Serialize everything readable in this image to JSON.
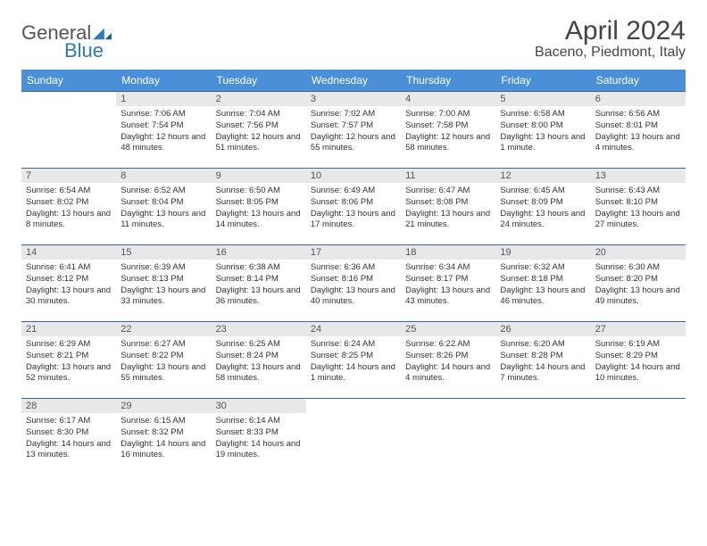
{
  "logo": {
    "general": "General",
    "blue": "Blue"
  },
  "title": "April 2024",
  "location": "Baceno, Piedmont, Italy",
  "colors": {
    "header_bg": "#4a90d9",
    "header_fg": "#ffffff",
    "row_border": "#3a6a9c",
    "daynum_bg": "#e8e8e8",
    "logo_blue": "#2a7ab8"
  },
  "weekdays": [
    "Sunday",
    "Monday",
    "Tuesday",
    "Wednesday",
    "Thursday",
    "Friday",
    "Saturday"
  ],
  "weeks": [
    [
      null,
      {
        "n": "1",
        "sr": "Sunrise: 7:06 AM",
        "ss": "Sunset: 7:54 PM",
        "dl": "Daylight: 12 hours and 48 minutes."
      },
      {
        "n": "2",
        "sr": "Sunrise: 7:04 AM",
        "ss": "Sunset: 7:56 PM",
        "dl": "Daylight: 12 hours and 51 minutes."
      },
      {
        "n": "3",
        "sr": "Sunrise: 7:02 AM",
        "ss": "Sunset: 7:57 PM",
        "dl": "Daylight: 12 hours and 55 minutes."
      },
      {
        "n": "4",
        "sr": "Sunrise: 7:00 AM",
        "ss": "Sunset: 7:58 PM",
        "dl": "Daylight: 12 hours and 58 minutes."
      },
      {
        "n": "5",
        "sr": "Sunrise: 6:58 AM",
        "ss": "Sunset: 8:00 PM",
        "dl": "Daylight: 13 hours and 1 minute."
      },
      {
        "n": "6",
        "sr": "Sunrise: 6:56 AM",
        "ss": "Sunset: 8:01 PM",
        "dl": "Daylight: 13 hours and 4 minutes."
      }
    ],
    [
      {
        "n": "7",
        "sr": "Sunrise: 6:54 AM",
        "ss": "Sunset: 8:02 PM",
        "dl": "Daylight: 13 hours and 8 minutes."
      },
      {
        "n": "8",
        "sr": "Sunrise: 6:52 AM",
        "ss": "Sunset: 8:04 PM",
        "dl": "Daylight: 13 hours and 11 minutes."
      },
      {
        "n": "9",
        "sr": "Sunrise: 6:50 AM",
        "ss": "Sunset: 8:05 PM",
        "dl": "Daylight: 13 hours and 14 minutes."
      },
      {
        "n": "10",
        "sr": "Sunrise: 6:49 AM",
        "ss": "Sunset: 8:06 PM",
        "dl": "Daylight: 13 hours and 17 minutes."
      },
      {
        "n": "11",
        "sr": "Sunrise: 6:47 AM",
        "ss": "Sunset: 8:08 PM",
        "dl": "Daylight: 13 hours and 21 minutes."
      },
      {
        "n": "12",
        "sr": "Sunrise: 6:45 AM",
        "ss": "Sunset: 8:09 PM",
        "dl": "Daylight: 13 hours and 24 minutes."
      },
      {
        "n": "13",
        "sr": "Sunrise: 6:43 AM",
        "ss": "Sunset: 8:10 PM",
        "dl": "Daylight: 13 hours and 27 minutes."
      }
    ],
    [
      {
        "n": "14",
        "sr": "Sunrise: 6:41 AM",
        "ss": "Sunset: 8:12 PM",
        "dl": "Daylight: 13 hours and 30 minutes."
      },
      {
        "n": "15",
        "sr": "Sunrise: 6:39 AM",
        "ss": "Sunset: 8:13 PM",
        "dl": "Daylight: 13 hours and 33 minutes."
      },
      {
        "n": "16",
        "sr": "Sunrise: 6:38 AM",
        "ss": "Sunset: 8:14 PM",
        "dl": "Daylight: 13 hours and 36 minutes."
      },
      {
        "n": "17",
        "sr": "Sunrise: 6:36 AM",
        "ss": "Sunset: 8:16 PM",
        "dl": "Daylight: 13 hours and 40 minutes."
      },
      {
        "n": "18",
        "sr": "Sunrise: 6:34 AM",
        "ss": "Sunset: 8:17 PM",
        "dl": "Daylight: 13 hours and 43 minutes."
      },
      {
        "n": "19",
        "sr": "Sunrise: 6:32 AM",
        "ss": "Sunset: 8:18 PM",
        "dl": "Daylight: 13 hours and 46 minutes."
      },
      {
        "n": "20",
        "sr": "Sunrise: 6:30 AM",
        "ss": "Sunset: 8:20 PM",
        "dl": "Daylight: 13 hours and 49 minutes."
      }
    ],
    [
      {
        "n": "21",
        "sr": "Sunrise: 6:29 AM",
        "ss": "Sunset: 8:21 PM",
        "dl": "Daylight: 13 hours and 52 minutes."
      },
      {
        "n": "22",
        "sr": "Sunrise: 6:27 AM",
        "ss": "Sunset: 8:22 PM",
        "dl": "Daylight: 13 hours and 55 minutes."
      },
      {
        "n": "23",
        "sr": "Sunrise: 6:25 AM",
        "ss": "Sunset: 8:24 PM",
        "dl": "Daylight: 13 hours and 58 minutes."
      },
      {
        "n": "24",
        "sr": "Sunrise: 6:24 AM",
        "ss": "Sunset: 8:25 PM",
        "dl": "Daylight: 14 hours and 1 minute."
      },
      {
        "n": "25",
        "sr": "Sunrise: 6:22 AM",
        "ss": "Sunset: 8:26 PM",
        "dl": "Daylight: 14 hours and 4 minutes."
      },
      {
        "n": "26",
        "sr": "Sunrise: 6:20 AM",
        "ss": "Sunset: 8:28 PM",
        "dl": "Daylight: 14 hours and 7 minutes."
      },
      {
        "n": "27",
        "sr": "Sunrise: 6:19 AM",
        "ss": "Sunset: 8:29 PM",
        "dl": "Daylight: 14 hours and 10 minutes."
      }
    ],
    [
      {
        "n": "28",
        "sr": "Sunrise: 6:17 AM",
        "ss": "Sunset: 8:30 PM",
        "dl": "Daylight: 14 hours and 13 minutes."
      },
      {
        "n": "29",
        "sr": "Sunrise: 6:15 AM",
        "ss": "Sunset: 8:32 PM",
        "dl": "Daylight: 14 hours and 16 minutes."
      },
      {
        "n": "30",
        "sr": "Sunrise: 6:14 AM",
        "ss": "Sunset: 8:33 PM",
        "dl": "Daylight: 14 hours and 19 minutes."
      },
      null,
      null,
      null,
      null
    ]
  ]
}
